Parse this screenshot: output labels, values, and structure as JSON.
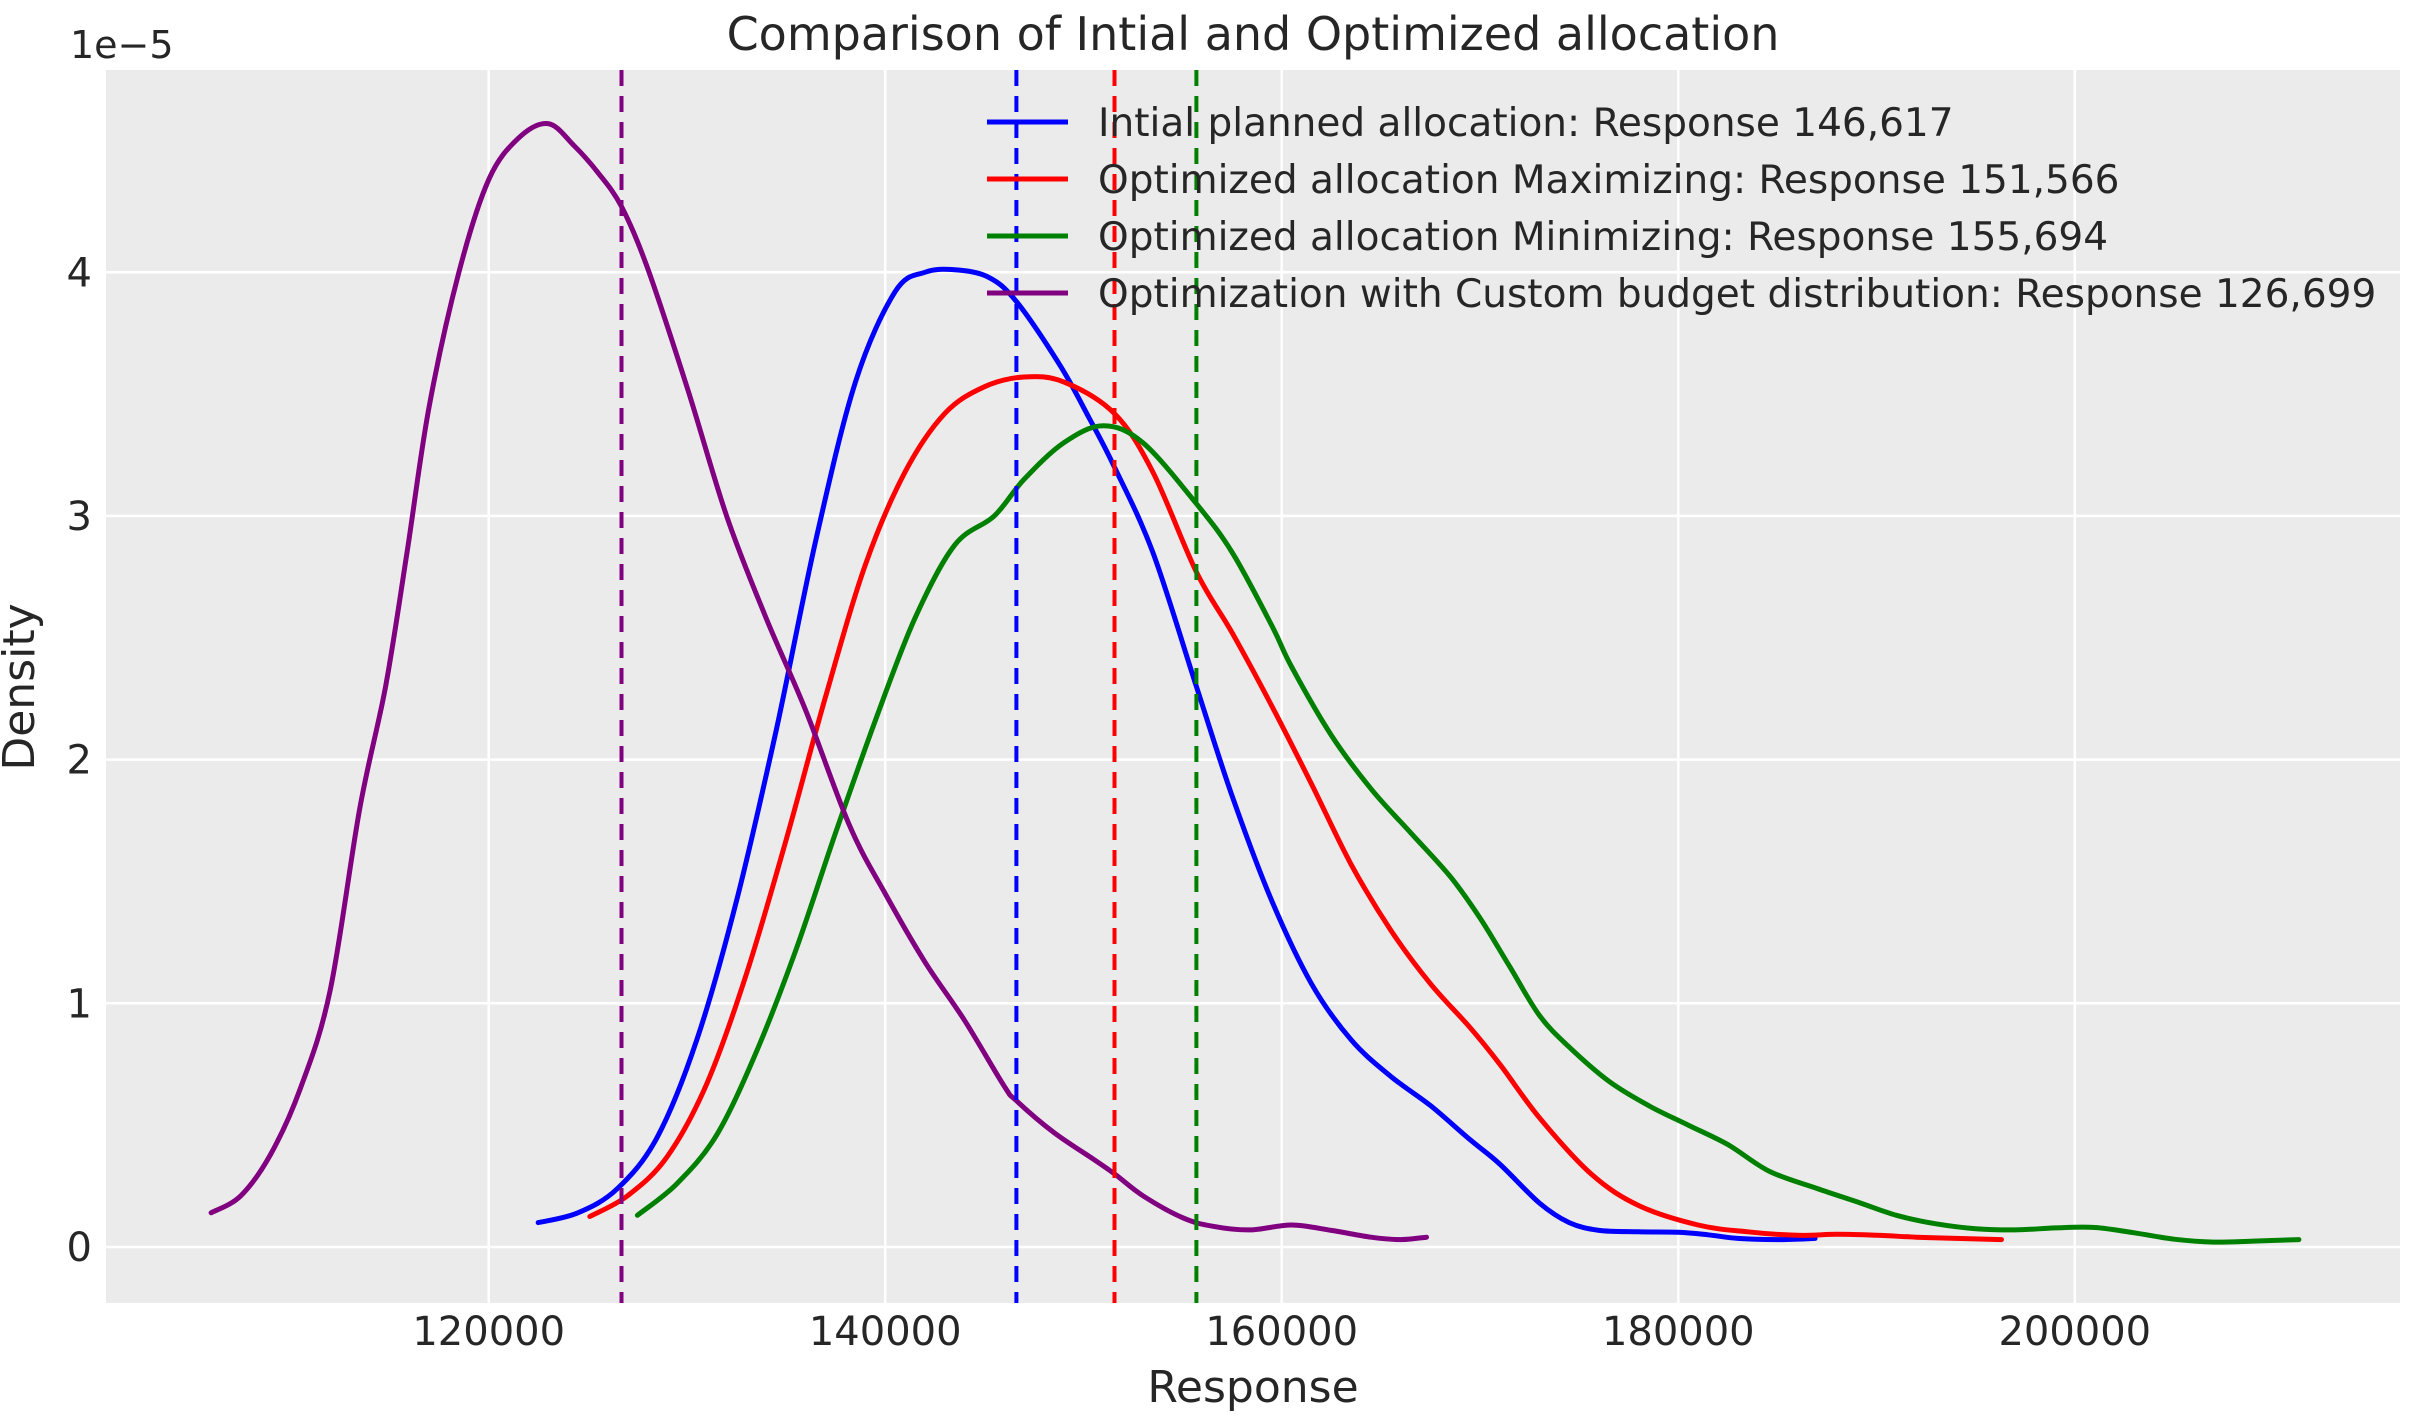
{
  "title": "Comparison of Intial and Optimized allocation",
  "axes": {
    "xlabel": "Response",
    "ylabel": "Density",
    "offset_text": "1e−5",
    "xticks": [
      {
        "value": 120000,
        "label": "120000"
      },
      {
        "value": 140000,
        "label": "140000"
      },
      {
        "value": 160000,
        "label": "160000"
      },
      {
        "value": 180000,
        "label": "180000"
      },
      {
        "value": 200000,
        "label": "200000"
      }
    ],
    "yticks": [
      {
        "value": 0,
        "label": "0"
      },
      {
        "value": 1,
        "label": "1"
      },
      {
        "value": 2,
        "label": "2"
      },
      {
        "value": 3,
        "label": "3"
      },
      {
        "value": 4,
        "label": "4"
      }
    ]
  },
  "style": {
    "figure_bg": "#ffffff",
    "plot_bg": "#ebebeb",
    "grid_color": "#ffffff",
    "text_color": "#262626"
  },
  "chart_data": {
    "type": "line",
    "subtype": "kde-density",
    "title": "Comparison of Intial and Optimized allocation",
    "xlabel": "Response",
    "ylabel": "Density",
    "y_scale": "1e-5",
    "x_range": [
      100700,
      216400
    ],
    "y_range": [
      -0.23,
      4.83
    ],
    "grid": true,
    "legend_position": "upper center",
    "series": [
      {
        "key": "initial",
        "label": "Intial planned allocation: Response 146,617",
        "color": "#0000ff",
        "mean": 146617,
        "points": [
          [
            122500,
            0.1
          ],
          [
            124500,
            0.14
          ],
          [
            126500,
            0.24
          ],
          [
            128500,
            0.45
          ],
          [
            130500,
            0.85
          ],
          [
            132500,
            1.42
          ],
          [
            134500,
            2.12
          ],
          [
            136500,
            2.9
          ],
          [
            138500,
            3.55
          ],
          [
            140500,
            3.92
          ],
          [
            142000,
            4.0
          ],
          [
            143500,
            4.01
          ],
          [
            145200,
            3.98
          ],
          [
            146617,
            3.88
          ],
          [
            148800,
            3.62
          ],
          [
            150300,
            3.4
          ],
          [
            151566,
            3.2
          ],
          [
            153500,
            2.85
          ],
          [
            155694,
            2.3
          ],
          [
            157500,
            1.85
          ],
          [
            159500,
            1.42
          ],
          [
            161500,
            1.08
          ],
          [
            163500,
            0.85
          ],
          [
            165500,
            0.7
          ],
          [
            167500,
            0.58
          ],
          [
            169500,
            0.44
          ],
          [
            171000,
            0.34
          ],
          [
            173000,
            0.18
          ],
          [
            174500,
            0.1
          ],
          [
            176000,
            0.068
          ],
          [
            178000,
            0.062
          ],
          [
            180000,
            0.06
          ],
          [
            181500,
            0.05
          ],
          [
            183000,
            0.035
          ],
          [
            185000,
            0.03
          ],
          [
            186900,
            0.035
          ]
        ]
      },
      {
        "key": "maximizing",
        "label": "Optimized allocation Maximizing: Response 151,566",
        "color": "#ff0000",
        "mean": 151566,
        "points": [
          [
            125100,
            0.125
          ],
          [
            127000,
            0.21
          ],
          [
            129000,
            0.37
          ],
          [
            131000,
            0.67
          ],
          [
            133000,
            1.12
          ],
          [
            135000,
            1.67
          ],
          [
            137000,
            2.26
          ],
          [
            139000,
            2.8
          ],
          [
            141000,
            3.18
          ],
          [
            143000,
            3.42
          ],
          [
            145000,
            3.53
          ],
          [
            147000,
            3.57
          ],
          [
            149000,
            3.55
          ],
          [
            151566,
            3.42
          ],
          [
            153500,
            3.18
          ],
          [
            155694,
            2.77
          ],
          [
            157500,
            2.52
          ],
          [
            159500,
            2.22
          ],
          [
            161500,
            1.9
          ],
          [
            163500,
            1.57
          ],
          [
            165500,
            1.3
          ],
          [
            167500,
            1.08
          ],
          [
            169500,
            0.9
          ],
          [
            171000,
            0.75
          ],
          [
            173000,
            0.53
          ],
          [
            175600,
            0.3
          ],
          [
            178000,
            0.17
          ],
          [
            181000,
            0.09
          ],
          [
            183500,
            0.062
          ],
          [
            186000,
            0.048
          ],
          [
            188000,
            0.052
          ],
          [
            190000,
            0.048
          ],
          [
            192000,
            0.04
          ],
          [
            194000,
            0.035
          ],
          [
            196300,
            0.03
          ]
        ]
      },
      {
        "key": "minimizing",
        "label": "Optimized allocation Minimizing: Response 155,694",
        "color": "#008000",
        "mean": 155694,
        "points": [
          [
            127500,
            0.13
          ],
          [
            129500,
            0.26
          ],
          [
            131500,
            0.46
          ],
          [
            133500,
            0.8
          ],
          [
            135500,
            1.22
          ],
          [
            137500,
            1.7
          ],
          [
            139500,
            2.16
          ],
          [
            141500,
            2.58
          ],
          [
            143500,
            2.88
          ],
          [
            145500,
            3.0
          ],
          [
            147000,
            3.15
          ],
          [
            149000,
            3.3
          ],
          [
            151000,
            3.37
          ],
          [
            153000,
            3.3
          ],
          [
            155694,
            3.05
          ],
          [
            157500,
            2.85
          ],
          [
            159500,
            2.55
          ],
          [
            160500,
            2.38
          ],
          [
            162500,
            2.1
          ],
          [
            164500,
            1.88
          ],
          [
            166500,
            1.7
          ],
          [
            168500,
            1.52
          ],
          [
            170000,
            1.35
          ],
          [
            171500,
            1.15
          ],
          [
            173000,
            0.95
          ],
          [
            174500,
            0.82
          ],
          [
            176500,
            0.68
          ],
          [
            178500,
            0.58
          ],
          [
            180500,
            0.5
          ],
          [
            182500,
            0.42
          ],
          [
            184600,
            0.31
          ],
          [
            187000,
            0.24
          ],
          [
            189200,
            0.18
          ],
          [
            191000,
            0.13
          ],
          [
            193000,
            0.095
          ],
          [
            195000,
            0.075
          ],
          [
            197000,
            0.07
          ],
          [
            199000,
            0.078
          ],
          [
            201000,
            0.08
          ],
          [
            203000,
            0.058
          ],
          [
            205000,
            0.032
          ],
          [
            207000,
            0.02
          ],
          [
            209000,
            0.024
          ],
          [
            211300,
            0.03
          ]
        ]
      },
      {
        "key": "custom",
        "label": "Optimization with Custom budget distribution: Response 126,699",
        "color": "#800080",
        "mean": 126699,
        "points": [
          [
            106000,
            0.14
          ],
          [
            107500,
            0.21
          ],
          [
            109000,
            0.38
          ],
          [
            110500,
            0.65
          ],
          [
            112000,
            1.05
          ],
          [
            113500,
            1.8
          ],
          [
            114800,
            2.3
          ],
          [
            115900,
            2.86
          ],
          [
            117000,
            3.45
          ],
          [
            118500,
            4.0
          ],
          [
            120000,
            4.38
          ],
          [
            121500,
            4.55
          ],
          [
            123000,
            4.61
          ],
          [
            124300,
            4.52
          ],
          [
            125500,
            4.41
          ],
          [
            126699,
            4.27
          ],
          [
            128000,
            4.02
          ],
          [
            130000,
            3.53
          ],
          [
            132000,
            3.0
          ],
          [
            134000,
            2.58
          ],
          [
            136000,
            2.2
          ],
          [
            138200,
            1.73
          ],
          [
            140000,
            1.45
          ],
          [
            142000,
            1.17
          ],
          [
            144000,
            0.93
          ],
          [
            146000,
            0.66
          ],
          [
            146617,
            0.6
          ],
          [
            148500,
            0.47
          ],
          [
            150500,
            0.36
          ],
          [
            151566,
            0.3
          ],
          [
            153000,
            0.21
          ],
          [
            155000,
            0.12
          ],
          [
            156500,
            0.085
          ],
          [
            158400,
            0.07
          ],
          [
            160500,
            0.09
          ],
          [
            162500,
            0.068
          ],
          [
            164500,
            0.04
          ],
          [
            166000,
            0.03
          ],
          [
            167300,
            0.04
          ]
        ]
      }
    ]
  }
}
